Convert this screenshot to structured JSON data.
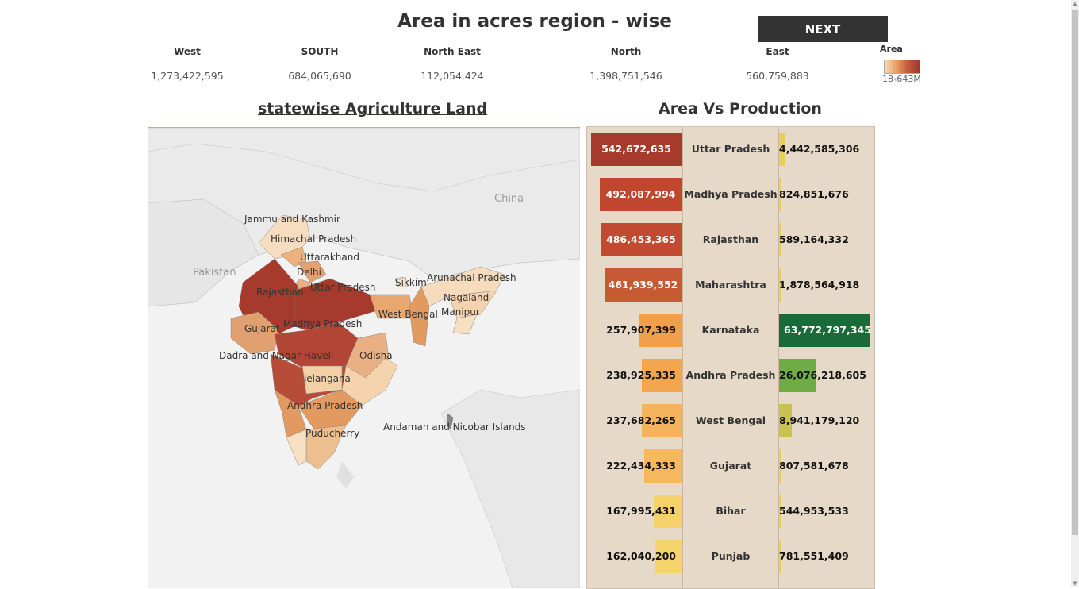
{
  "header": {
    "title": "Area in acres region - wise",
    "next_label": "NEXT"
  },
  "regions": [
    {
      "name": "West",
      "value": "1,273,422,595"
    },
    {
      "name": "SOUTH",
      "value": "684,065,690"
    },
    {
      "name": "North East",
      "value": "112,054,424"
    },
    {
      "name": "North",
      "value": "1,398,751,546"
    },
    {
      "name": "East",
      "value": "560,759,883"
    }
  ],
  "legend": {
    "title": "Area",
    "min_label": "18",
    "max_label": "643M",
    "colors": [
      "#f6d9b8",
      "#e8a066",
      "#c45a3a",
      "#9c3a30"
    ]
  },
  "map": {
    "title": "statewise Agriculture Land",
    "country_labels": [
      "China",
      "Pakistan"
    ],
    "state_labels": [
      "Jammu and Kashmir",
      "Himachal Pradesh",
      "Uttarakhand",
      "Delhi",
      "Rajasthan",
      "Uttar Pradesh",
      "Sikkim",
      "Arunachal Pradesh",
      "Nagaland",
      "Manipur",
      "West Bengal",
      "Gujarat",
      "Madhya Pradesh",
      "Odisha",
      "Dadra and Nagar Haveli",
      "Telangana",
      "Andhra Pradesh",
      "Puducherry",
      "Andaman and Nicobar Islands"
    ]
  },
  "panel": {
    "title": "Area Vs Production"
  },
  "chart_data": {
    "type": "bar",
    "title": "Area Vs Production",
    "categories": [
      "Uttar Pradesh",
      "Madhya Pradesh",
      "Rajasthan",
      "Maharashtra",
      "Karnataka",
      "Andhra Pradesh",
      "West Bengal",
      "Gujarat",
      "Bihar",
      "Punjab"
    ],
    "series": [
      {
        "values": [
          542672635,
          492087994,
          486453365,
          461939552,
          257907399,
          238925335,
          237682265,
          222434333,
          167995431,
          162040200
        ]
      },
      {
        "values": [
          4442585306,
          824851676,
          589164332,
          1878564918,
          63772797345,
          26076218605,
          8941179120,
          807581678,
          544953533,
          781551409
        ]
      }
    ],
    "area_labels": [
      "542,672,635",
      "492,087,994",
      "486,453,365",
      "461,939,552",
      "257,907,399",
      "238,925,335",
      "237,682,265",
      "222,434,333",
      "167,995,431",
      "162,040,200"
    ],
    "production_labels": [
      "4,442,585,306",
      "824,851,676",
      "589,164,332",
      "1,878,564,918",
      "63,772,797,345",
      "26,076,218,605",
      "8,941,179,120",
      "807,581,678",
      "544,953,533",
      "781,551,409"
    ],
    "area_colors": [
      "#a63a2c",
      "#c0472e",
      "#c14a30",
      "#c65a35",
      "#f0a04a",
      "#f3a64e",
      "#f4b35c",
      "#f5b85f",
      "#f6d068",
      "#f6d46c"
    ],
    "production_colors": [
      "#e8cf55",
      "#e8cf55",
      "#e8cf55",
      "#e8cf55",
      "#1b6b38",
      "#6fac46",
      "#c9c150",
      "#e8cf55",
      "#e8cf55",
      "#e8cf55"
    ]
  }
}
